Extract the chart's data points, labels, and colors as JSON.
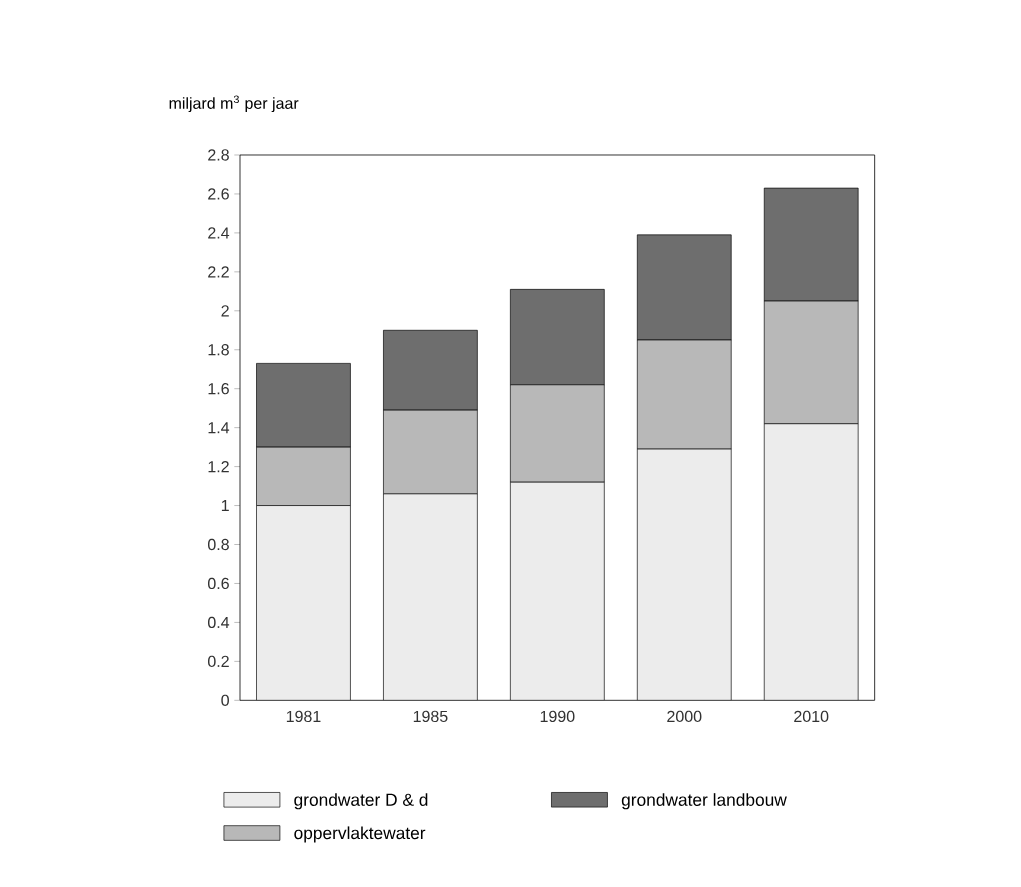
{
  "chart_data": {
    "type": "bar",
    "stacked": true,
    "ylabel": "miljard m$^{3}$ per jaar",
    "categories": [
      "1981",
      "1985",
      "1990",
      "2000",
      "2010"
    ],
    "series": [
      {
        "name": "grondwater D & d",
        "color": "#ececec",
        "values": [
          1.0,
          1.06,
          1.12,
          1.29,
          1.42
        ]
      },
      {
        "name": "oppervlaktewater",
        "color": "#b8b8b8",
        "values": [
          0.3,
          0.43,
          0.5,
          0.56,
          0.63
        ]
      },
      {
        "name": "grondwater landbouw",
        "color": "#6e6e6e",
        "values": [
          0.43,
          0.41,
          0.49,
          0.54,
          0.58
        ]
      }
    ],
    "ylim": [
      0,
      2.8
    ],
    "yticks": [
      0,
      0.2,
      0.4,
      0.6,
      0.8,
      1,
      1.2,
      1.4,
      1.6,
      1.8,
      2,
      2.2,
      2.4,
      2.6,
      2.8
    ],
    "grid": false,
    "legend": "bottom"
  }
}
